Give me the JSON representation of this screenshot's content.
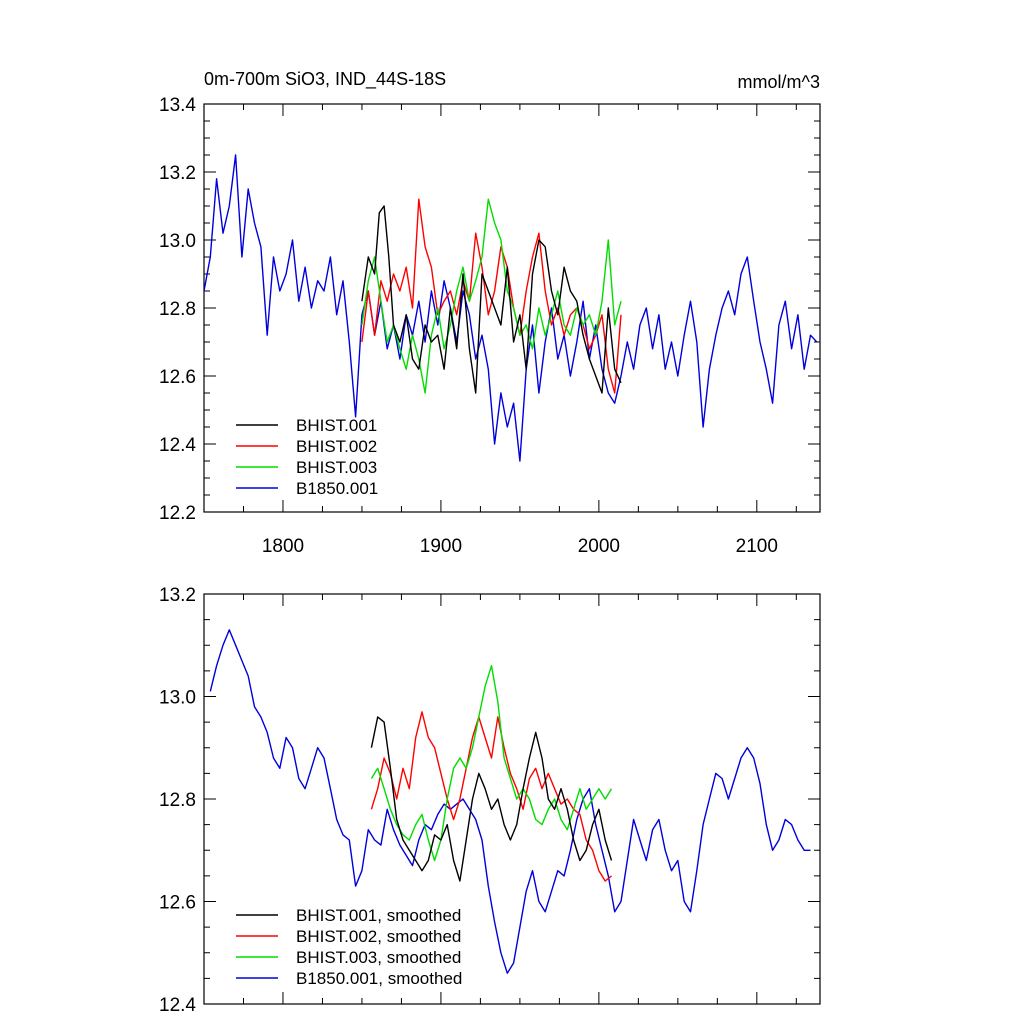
{
  "colors": {
    "BHIST.001": "#000000",
    "BHIST.002": "#ff0000",
    "BHIST.003": "#00dd00",
    "B1850.001": "#0000dd",
    "frame": "#000000"
  },
  "chart_data": [
    {
      "type": "line",
      "title": "0m-700m SiO3, IND_44S-18S",
      "units": "mmol/m^3",
      "xlim": [
        1750,
        2140
      ],
      "ylim": [
        12.2,
        13.4
      ],
      "x_ticks": [
        1800,
        1900,
        2000,
        2100
      ],
      "y_ticks": [
        12.2,
        12.4,
        12.6,
        12.8,
        13.0,
        13.2,
        13.4
      ],
      "y_tick_labels": [
        "12.2",
        "12.4",
        "12.6",
        "12.8",
        "13.0",
        "13.2",
        "13.4"
      ],
      "legend_position": "bottom-left",
      "series": [
        {
          "name": "BHIST.001",
          "label": "BHIST.001",
          "x": [
            1850,
            1854,
            1858,
            1861,
            1864,
            1867,
            1870,
            1874,
            1878,
            1882,
            1886,
            1890,
            1894,
            1898,
            1902,
            1906,
            1910,
            1914,
            1918,
            1922,
            1926,
            1930,
            1934,
            1938,
            1942,
            1946,
            1950,
            1954,
            1958,
            1962,
            1966,
            1970,
            1974,
            1978,
            1982,
            1986,
            1990,
            1994,
            1998,
            2002,
            2006,
            2010,
            2014
          ],
          "values": [
            12.82,
            12.95,
            12.9,
            13.08,
            13.1,
            12.95,
            12.75,
            12.7,
            12.78,
            12.65,
            12.62,
            12.75,
            12.7,
            12.72,
            12.62,
            12.8,
            12.68,
            12.9,
            12.68,
            12.55,
            12.9,
            12.85,
            12.8,
            12.75,
            12.92,
            12.7,
            12.78,
            12.62,
            12.9,
            13.0,
            12.98,
            12.85,
            12.78,
            12.92,
            12.85,
            12.82,
            12.72,
            12.65,
            12.6,
            12.55,
            12.8,
            12.62,
            12.58
          ]
        },
        {
          "name": "BHIST.002",
          "label": "BHIST.002",
          "x": [
            1850,
            1854,
            1858,
            1862,
            1866,
            1870,
            1874,
            1878,
            1882,
            1886,
            1890,
            1894,
            1898,
            1902,
            1906,
            1910,
            1914,
            1918,
            1922,
            1926,
            1930,
            1934,
            1938,
            1942,
            1946,
            1950,
            1954,
            1958,
            1962,
            1966,
            1970,
            1974,
            1978,
            1982,
            1986,
            1990,
            1994,
            1998,
            2002,
            2006,
            2010,
            2014
          ],
          "values": [
            12.7,
            12.85,
            12.72,
            12.88,
            12.82,
            12.9,
            12.85,
            12.92,
            12.8,
            13.12,
            12.98,
            12.92,
            12.78,
            12.82,
            12.85,
            12.78,
            12.88,
            12.82,
            13.02,
            12.92,
            12.78,
            12.85,
            12.98,
            12.92,
            12.8,
            12.72,
            12.85,
            12.95,
            13.02,
            12.85,
            12.75,
            12.8,
            12.72,
            12.78,
            12.8,
            12.75,
            12.68,
            12.72,
            12.78,
            12.62,
            12.55,
            12.78
          ]
        },
        {
          "name": "BHIST.003",
          "label": "BHIST.003",
          "x": [
            1850,
            1854,
            1858,
            1862,
            1866,
            1870,
            1874,
            1878,
            1882,
            1886,
            1890,
            1894,
            1898,
            1902,
            1906,
            1910,
            1914,
            1918,
            1922,
            1926,
            1930,
            1934,
            1938,
            1942,
            1946,
            1950,
            1954,
            1958,
            1962,
            1966,
            1970,
            1974,
            1978,
            1982,
            1986,
            1990,
            1994,
            1998,
            2002,
            2006,
            2010,
            2014
          ],
          "values": [
            12.75,
            12.88,
            12.95,
            12.82,
            12.7,
            12.75,
            12.68,
            12.62,
            12.72,
            12.65,
            12.55,
            12.72,
            12.8,
            12.68,
            12.75,
            12.85,
            12.92,
            12.82,
            12.88,
            12.95,
            13.12,
            13.05,
            13.0,
            12.85,
            12.8,
            12.72,
            12.75,
            12.68,
            12.8,
            12.72,
            12.78,
            12.85,
            12.75,
            12.72,
            12.8,
            12.75,
            12.78,
            12.72,
            12.82,
            13.0,
            12.75,
            12.82
          ]
        },
        {
          "name": "B1850.001",
          "label": "B1850.001",
          "x": [
            1750,
            1754,
            1758,
            1762,
            1766,
            1770,
            1774,
            1778,
            1782,
            1786,
            1790,
            1794,
            1798,
            1802,
            1806,
            1810,
            1814,
            1818,
            1822,
            1826,
            1830,
            1834,
            1838,
            1842,
            1846,
            1850,
            1854,
            1858,
            1862,
            1866,
            1870,
            1874,
            1878,
            1882,
            1886,
            1890,
            1894,
            1898,
            1902,
            1906,
            1910,
            1914,
            1918,
            1922,
            1926,
            1930,
            1934,
            1938,
            1942,
            1946,
            1950,
            1954,
            1958,
            1962,
            1966,
            1970,
            1974,
            1978,
            1982,
            1986,
            1990,
            1994,
            1998,
            2002,
            2006,
            2010,
            2014,
            2018,
            2022,
            2026,
            2030,
            2034,
            2038,
            2042,
            2046,
            2050,
            2054,
            2058,
            2062,
            2066,
            2070,
            2074,
            2078,
            2082,
            2086,
            2090,
            2094,
            2098,
            2102,
            2106,
            2110,
            2114,
            2118,
            2122,
            2126,
            2130,
            2134,
            2138
          ],
          "values": [
            12.85,
            12.95,
            13.18,
            13.02,
            13.1,
            13.25,
            12.95,
            13.15,
            13.05,
            12.98,
            12.72,
            12.95,
            12.85,
            12.9,
            13.0,
            12.82,
            12.92,
            12.8,
            12.88,
            12.85,
            12.95,
            12.78,
            12.88,
            12.7,
            12.48,
            12.78,
            12.85,
            12.72,
            12.82,
            12.68,
            12.75,
            12.65,
            12.78,
            12.72,
            12.82,
            12.7,
            12.85,
            12.75,
            12.88,
            12.8,
            12.7,
            12.85,
            12.78,
            12.65,
            12.72,
            12.62,
            12.4,
            12.55,
            12.45,
            12.52,
            12.35,
            12.62,
            12.75,
            12.55,
            12.7,
            12.8,
            12.65,
            12.72,
            12.6,
            12.7,
            12.82,
            12.65,
            12.75,
            12.62,
            12.55,
            12.52,
            12.6,
            12.7,
            12.62,
            12.75,
            12.8,
            12.68,
            12.78,
            12.62,
            12.7,
            12.6,
            12.72,
            12.82,
            12.7,
            12.45,
            12.62,
            12.72,
            12.8,
            12.85,
            12.78,
            12.9,
            12.95,
            12.82,
            12.7,
            12.62,
            12.52,
            12.75,
            12.82,
            12.68,
            12.78,
            12.62,
            12.72,
            12.7
          ]
        }
      ]
    },
    {
      "type": "line",
      "title": "",
      "units": "",
      "xlim": [
        1750,
        2140
      ],
      "ylim": [
        12.4,
        13.2
      ],
      "x_ticks": [
        1800,
        1900,
        2000,
        2100
      ],
      "y_ticks": [
        12.4,
        12.6,
        12.8,
        13.0,
        13.2
      ],
      "y_tick_labels": [
        "12.4",
        "12.6",
        "12.8",
        "13.0",
        "13.2"
      ],
      "legend_position": "bottom-left",
      "series": [
        {
          "name": "BHIST.001",
          "label": "BHIST.001, smoothed",
          "x": [
            1856,
            1860,
            1864,
            1868,
            1872,
            1876,
            1880,
            1884,
            1888,
            1892,
            1896,
            1900,
            1904,
            1908,
            1912,
            1916,
            1920,
            1924,
            1928,
            1932,
            1936,
            1940,
            1944,
            1948,
            1952,
            1956,
            1960,
            1964,
            1968,
            1972,
            1976,
            1980,
            1984,
            1988,
            1992,
            1996,
            2000,
            2004,
            2008
          ],
          "values": [
            12.9,
            12.96,
            12.95,
            12.86,
            12.76,
            12.72,
            12.7,
            12.68,
            12.66,
            12.68,
            12.73,
            12.72,
            12.75,
            12.68,
            12.64,
            12.72,
            12.8,
            12.85,
            12.82,
            12.78,
            12.8,
            12.75,
            12.72,
            12.75,
            12.82,
            12.88,
            12.93,
            12.88,
            12.8,
            12.78,
            12.82,
            12.78,
            12.72,
            12.68,
            12.7,
            12.75,
            12.78,
            12.72,
            12.68
          ]
        },
        {
          "name": "BHIST.002",
          "label": "BHIST.002, smoothed",
          "x": [
            1856,
            1860,
            1864,
            1868,
            1872,
            1876,
            1880,
            1884,
            1888,
            1892,
            1896,
            1900,
            1904,
            1908,
            1912,
            1916,
            1920,
            1924,
            1928,
            1932,
            1936,
            1940,
            1944,
            1948,
            1952,
            1956,
            1960,
            1964,
            1968,
            1972,
            1976,
            1980,
            1984,
            1988,
            1992,
            1996,
            2000,
            2004,
            2008
          ],
          "values": [
            12.78,
            12.82,
            12.88,
            12.85,
            12.8,
            12.86,
            12.82,
            12.92,
            12.97,
            12.92,
            12.9,
            12.85,
            12.8,
            12.76,
            12.8,
            12.86,
            12.92,
            12.96,
            12.92,
            12.88,
            12.96,
            12.9,
            12.85,
            12.82,
            12.78,
            12.84,
            12.86,
            12.82,
            12.85,
            12.82,
            12.79,
            12.8,
            12.78,
            12.77,
            12.72,
            12.7,
            12.66,
            12.64,
            12.65
          ]
        },
        {
          "name": "BHIST.003",
          "label": "BHIST.003, smoothed",
          "x": [
            1856,
            1860,
            1864,
            1868,
            1872,
            1876,
            1880,
            1884,
            1888,
            1892,
            1896,
            1900,
            1904,
            1908,
            1912,
            1916,
            1920,
            1924,
            1928,
            1932,
            1936,
            1940,
            1944,
            1948,
            1952,
            1956,
            1960,
            1964,
            1968,
            1972,
            1976,
            1980,
            1984,
            1988,
            1992,
            1996,
            2000,
            2004,
            2008
          ],
          "values": [
            12.84,
            12.86,
            12.82,
            12.78,
            12.75,
            12.73,
            12.72,
            12.75,
            12.77,
            12.72,
            12.68,
            12.72,
            12.8,
            12.86,
            12.88,
            12.86,
            12.9,
            12.96,
            13.02,
            13.06,
            12.99,
            12.88,
            12.84,
            12.8,
            12.82,
            12.8,
            12.76,
            12.75,
            12.78,
            12.8,
            12.76,
            12.74,
            12.78,
            12.82,
            12.78,
            12.8,
            12.82,
            12.8,
            12.82
          ]
        },
        {
          "name": "B1850.001",
          "label": "B1850.001, smoothed",
          "x": [
            1754,
            1758,
            1762,
            1766,
            1770,
            1774,
            1778,
            1782,
            1786,
            1790,
            1794,
            1798,
            1802,
            1806,
            1810,
            1814,
            1818,
            1822,
            1826,
            1830,
            1834,
            1838,
            1842,
            1846,
            1850,
            1854,
            1858,
            1862,
            1866,
            1870,
            1874,
            1878,
            1882,
            1886,
            1890,
            1894,
            1898,
            1902,
            1906,
            1910,
            1914,
            1918,
            1922,
            1926,
            1930,
            1934,
            1938,
            1942,
            1946,
            1950,
            1954,
            1958,
            1962,
            1966,
            1970,
            1974,
            1978,
            1982,
            1986,
            1990,
            1994,
            1998,
            2002,
            2006,
            2010,
            2014,
            2018,
            2022,
            2026,
            2030,
            2034,
            2038,
            2042,
            2046,
            2050,
            2054,
            2058,
            2062,
            2066,
            2070,
            2074,
            2078,
            2082,
            2086,
            2090,
            2094,
            2098,
            2102,
            2106,
            2110,
            2114,
            2118,
            2122,
            2126,
            2130,
            2134
          ],
          "values": [
            13.01,
            13.06,
            13.1,
            13.13,
            13.1,
            13.07,
            13.04,
            12.98,
            12.96,
            12.93,
            12.88,
            12.86,
            12.92,
            12.9,
            12.84,
            12.82,
            12.86,
            12.9,
            12.88,
            12.82,
            12.76,
            12.73,
            12.72,
            12.63,
            12.66,
            12.74,
            12.72,
            12.71,
            12.78,
            12.74,
            12.71,
            12.69,
            12.67,
            12.72,
            12.75,
            12.74,
            12.77,
            12.79,
            12.78,
            12.79,
            12.8,
            12.78,
            12.76,
            12.72,
            12.63,
            12.56,
            12.5,
            12.46,
            12.48,
            12.55,
            12.62,
            12.66,
            12.6,
            12.58,
            12.62,
            12.66,
            12.65,
            12.7,
            12.76,
            12.8,
            12.82,
            12.75,
            12.7,
            12.65,
            12.58,
            12.6,
            12.68,
            12.76,
            12.72,
            12.68,
            12.74,
            12.76,
            12.7,
            12.66,
            12.68,
            12.6,
            12.58,
            12.66,
            12.75,
            12.8,
            12.85,
            12.84,
            12.8,
            12.84,
            12.88,
            12.9,
            12.88,
            12.83,
            12.75,
            12.7,
            12.72,
            12.76,
            12.75,
            12.72,
            12.7,
            12.7
          ]
        }
      ]
    }
  ]
}
